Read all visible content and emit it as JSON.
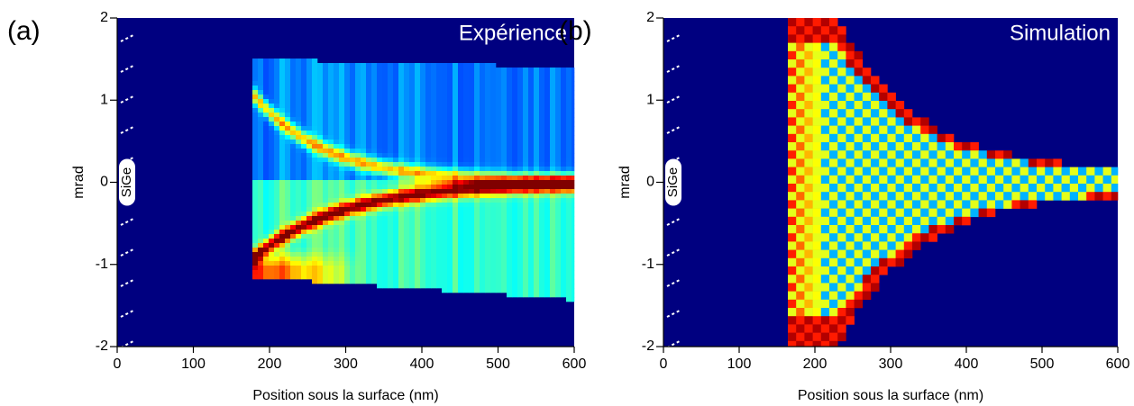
{
  "chart_data": [
    {
      "type": "heatmap",
      "panel_label": "(a)",
      "title": "Expérience",
      "annotation": "SiGe",
      "xlabel": "Position sous la surface (nm)",
      "ylabel": "mrad",
      "xlim": [
        0,
        600
      ],
      "ylim": [
        -2,
        2
      ],
      "xticks": [
        0,
        100,
        200,
        300,
        400,
        500,
        600
      ],
      "yticks": [
        -2,
        -1,
        0,
        1,
        2
      ]
    },
    {
      "type": "heatmap",
      "panel_label": "(b)",
      "title": "Simulation",
      "annotation": "SiGe",
      "xlabel": "Position sous la surface (nm)",
      "ylabel": "mrad",
      "xlim": [
        0,
        600
      ],
      "ylim": [
        -2,
        2
      ],
      "xticks": [
        0,
        100,
        200,
        300,
        400,
        500,
        600
      ],
      "yticks": [
        -2,
        -1,
        0,
        1,
        2
      ]
    }
  ]
}
